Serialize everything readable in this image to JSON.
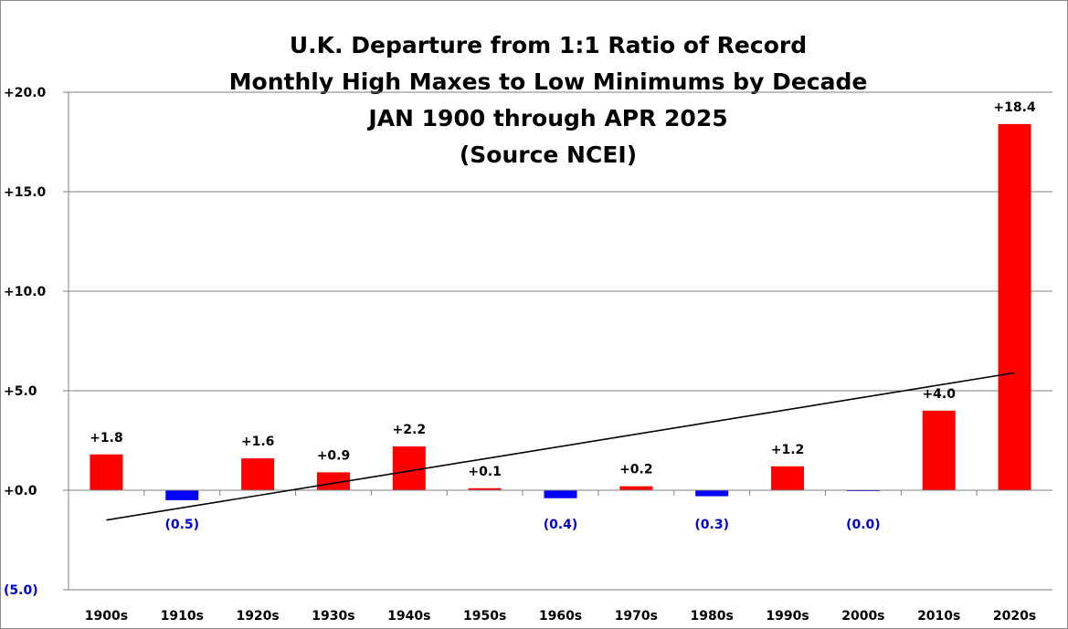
{
  "chart_data": {
    "type": "bar",
    "title_lines": [
      "U.K. Departure from 1:1 Ratio of Record",
      "Monthly High Maxes to Low Minimums by Decade",
      "JAN 1900 through APR 2025",
      "(Source NCEI)"
    ],
    "categories": [
      "1900s",
      "1910s",
      "1920s",
      "1930s",
      "1940s",
      "1950s",
      "1960s",
      "1970s",
      "1980s",
      "1990s",
      "2000s",
      "2010s",
      "2020s"
    ],
    "values": [
      1.8,
      -0.5,
      1.6,
      0.9,
      2.2,
      0.1,
      -0.4,
      0.2,
      -0.3,
      1.2,
      -0.02,
      4.0,
      18.4
    ],
    "data_labels": [
      "+1.8",
      "(0.5)",
      "+1.6",
      "+0.9",
      "+2.2",
      "+0.1",
      "(0.4)",
      "+0.2",
      "(0.3)",
      "+1.2",
      "(0.0)",
      "+4.0",
      "+18.4"
    ],
    "y_ticks": [
      20,
      15,
      10,
      5,
      0,
      -5
    ],
    "y_tick_labels": [
      "+20.0",
      "+15.0",
      "+10.0",
      "+5.0",
      "+0.0",
      "(5.0)"
    ],
    "ylim": [
      -5,
      20
    ],
    "grid": true,
    "trendline": {
      "start": -1.5,
      "end": 5.9
    },
    "colors": {
      "positive": "#ff0000",
      "negative": "#0000ff",
      "negative_label": "#0000cc",
      "grid": "#7f7f7f",
      "trend": "#000000"
    }
  }
}
